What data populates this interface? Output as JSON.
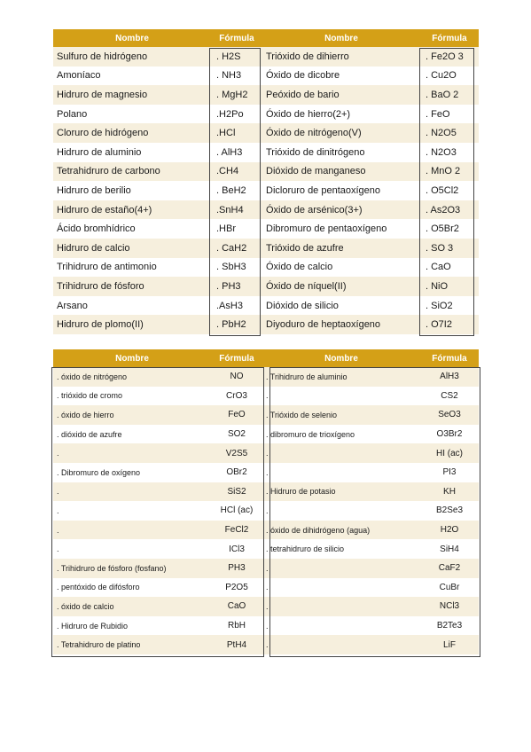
{
  "table1": {
    "headers": [
      "Nombre",
      "Fórmula",
      "Nombre",
      "Fórmula"
    ],
    "rows": [
      [
        "Sulfuro de hidrógeno",
        ". H2S",
        "Trióxido de dihierro",
        ". Fe2O 3"
      ],
      [
        "Amoníaco",
        ". NH3",
        "Óxido de dicobre",
        ". Cu2O"
      ],
      [
        "Hidruro de magnesio",
        ". MgH2",
        "Peóxido de bario",
        ". BaO 2"
      ],
      [
        "Polano",
        ".H2Po",
        "Óxido de hierro(2+)",
        ". FeO"
      ],
      [
        "Cloruro de hidrógeno",
        ".HCl",
        "Óxido de nitrógeno(V)",
        ". N2O5"
      ],
      [
        "Hidruro de aluminio",
        ". AlH3",
        "Trióxido de dinitrógeno",
        ". N2O3"
      ],
      [
        "Tetrahidruro de carbono",
        ".CH4",
        "Dióxido de manganeso",
        ". MnO 2"
      ],
      [
        "Hidruro de berilio",
        ". BeH2",
        "Dicloruro de pentaoxígeno",
        ". O5Cl2"
      ],
      [
        "Hidruro de estaño(4+)",
        ".SnH4",
        "Óxido de arsénico(3+)",
        ". As2O3"
      ],
      [
        "Ácido bromhídrico",
        ".HBr",
        "Dibromuro de pentaoxígeno",
        ". O5Br2"
      ],
      [
        "Hidruro de calcio",
        ". CaH2",
        "Trióxido de azufre",
        ". SO 3"
      ],
      [
        "Trihidruro de antimonio",
        ". SbH3",
        "Óxido de calcio",
        ". CaO"
      ],
      [
        "Trihidruro de fósforo",
        ". PH3",
        "Óxido de níquel(II)",
        ". NiO"
      ],
      [
        "Arsano",
        ".AsH3",
        "Dióxido de silicio",
        ". SiO2"
      ],
      [
        "Hidruro de plomo(II)",
        ". PbH2",
        "Diyoduro de heptaoxígeno",
        ". O7I2"
      ]
    ]
  },
  "table2": {
    "headers": [
      "Nombre",
      "Fórmula",
      "Nombre",
      "Fórmula"
    ],
    "rows": [
      [
        ". óxido de nitrógeno",
        "NO",
        ". Trihidruro de aluminio",
        "AlH3"
      ],
      [
        ". trióxido de cromo",
        "CrO3",
        ".",
        "CS2"
      ],
      [
        ". óxido de hierro",
        "FeO",
        ". Trióxido de selenio",
        "SeO3"
      ],
      [
        ". dióxido de azufre",
        "SO2",
        ". dibromuro de trioxígeno",
        "O3Br2"
      ],
      [
        ".",
        "V2S5",
        ".",
        "HI (ac)"
      ],
      [
        ". Dibromuro de oxígeno",
        "OBr2",
        ".",
        "PI3"
      ],
      [
        ".",
        "SiS2",
        ". Hidruro de potasio",
        "KH"
      ],
      [
        ".",
        "HCl (ac)",
        ".",
        "B2Se3"
      ],
      [
        ".",
        "FeCl2",
        ". óxido de dihidrógeno (agua)",
        "H2O"
      ],
      [
        ".",
        "ICl3",
        ". tetrahidruro de silicio",
        "SiH4"
      ],
      [
        ". Trihidruro de fósforo (fosfano)",
        "PH3",
        ".",
        "CaF2"
      ],
      [
        ". pentóxido de difósforo",
        "P2O5",
        ".",
        "CuBr"
      ],
      [
        ". óxido de calcio",
        "CaO",
        ".",
        "NCl3"
      ],
      [
        ". Hidruro de Rubidio",
        "RbH",
        ".",
        "B2Te3"
      ],
      [
        ". Tetrahidruro de platino",
        "PtH4",
        ".",
        "LiF"
      ]
    ]
  },
  "colors": {
    "header": "#d4a017",
    "band": "#f6efdd"
  }
}
